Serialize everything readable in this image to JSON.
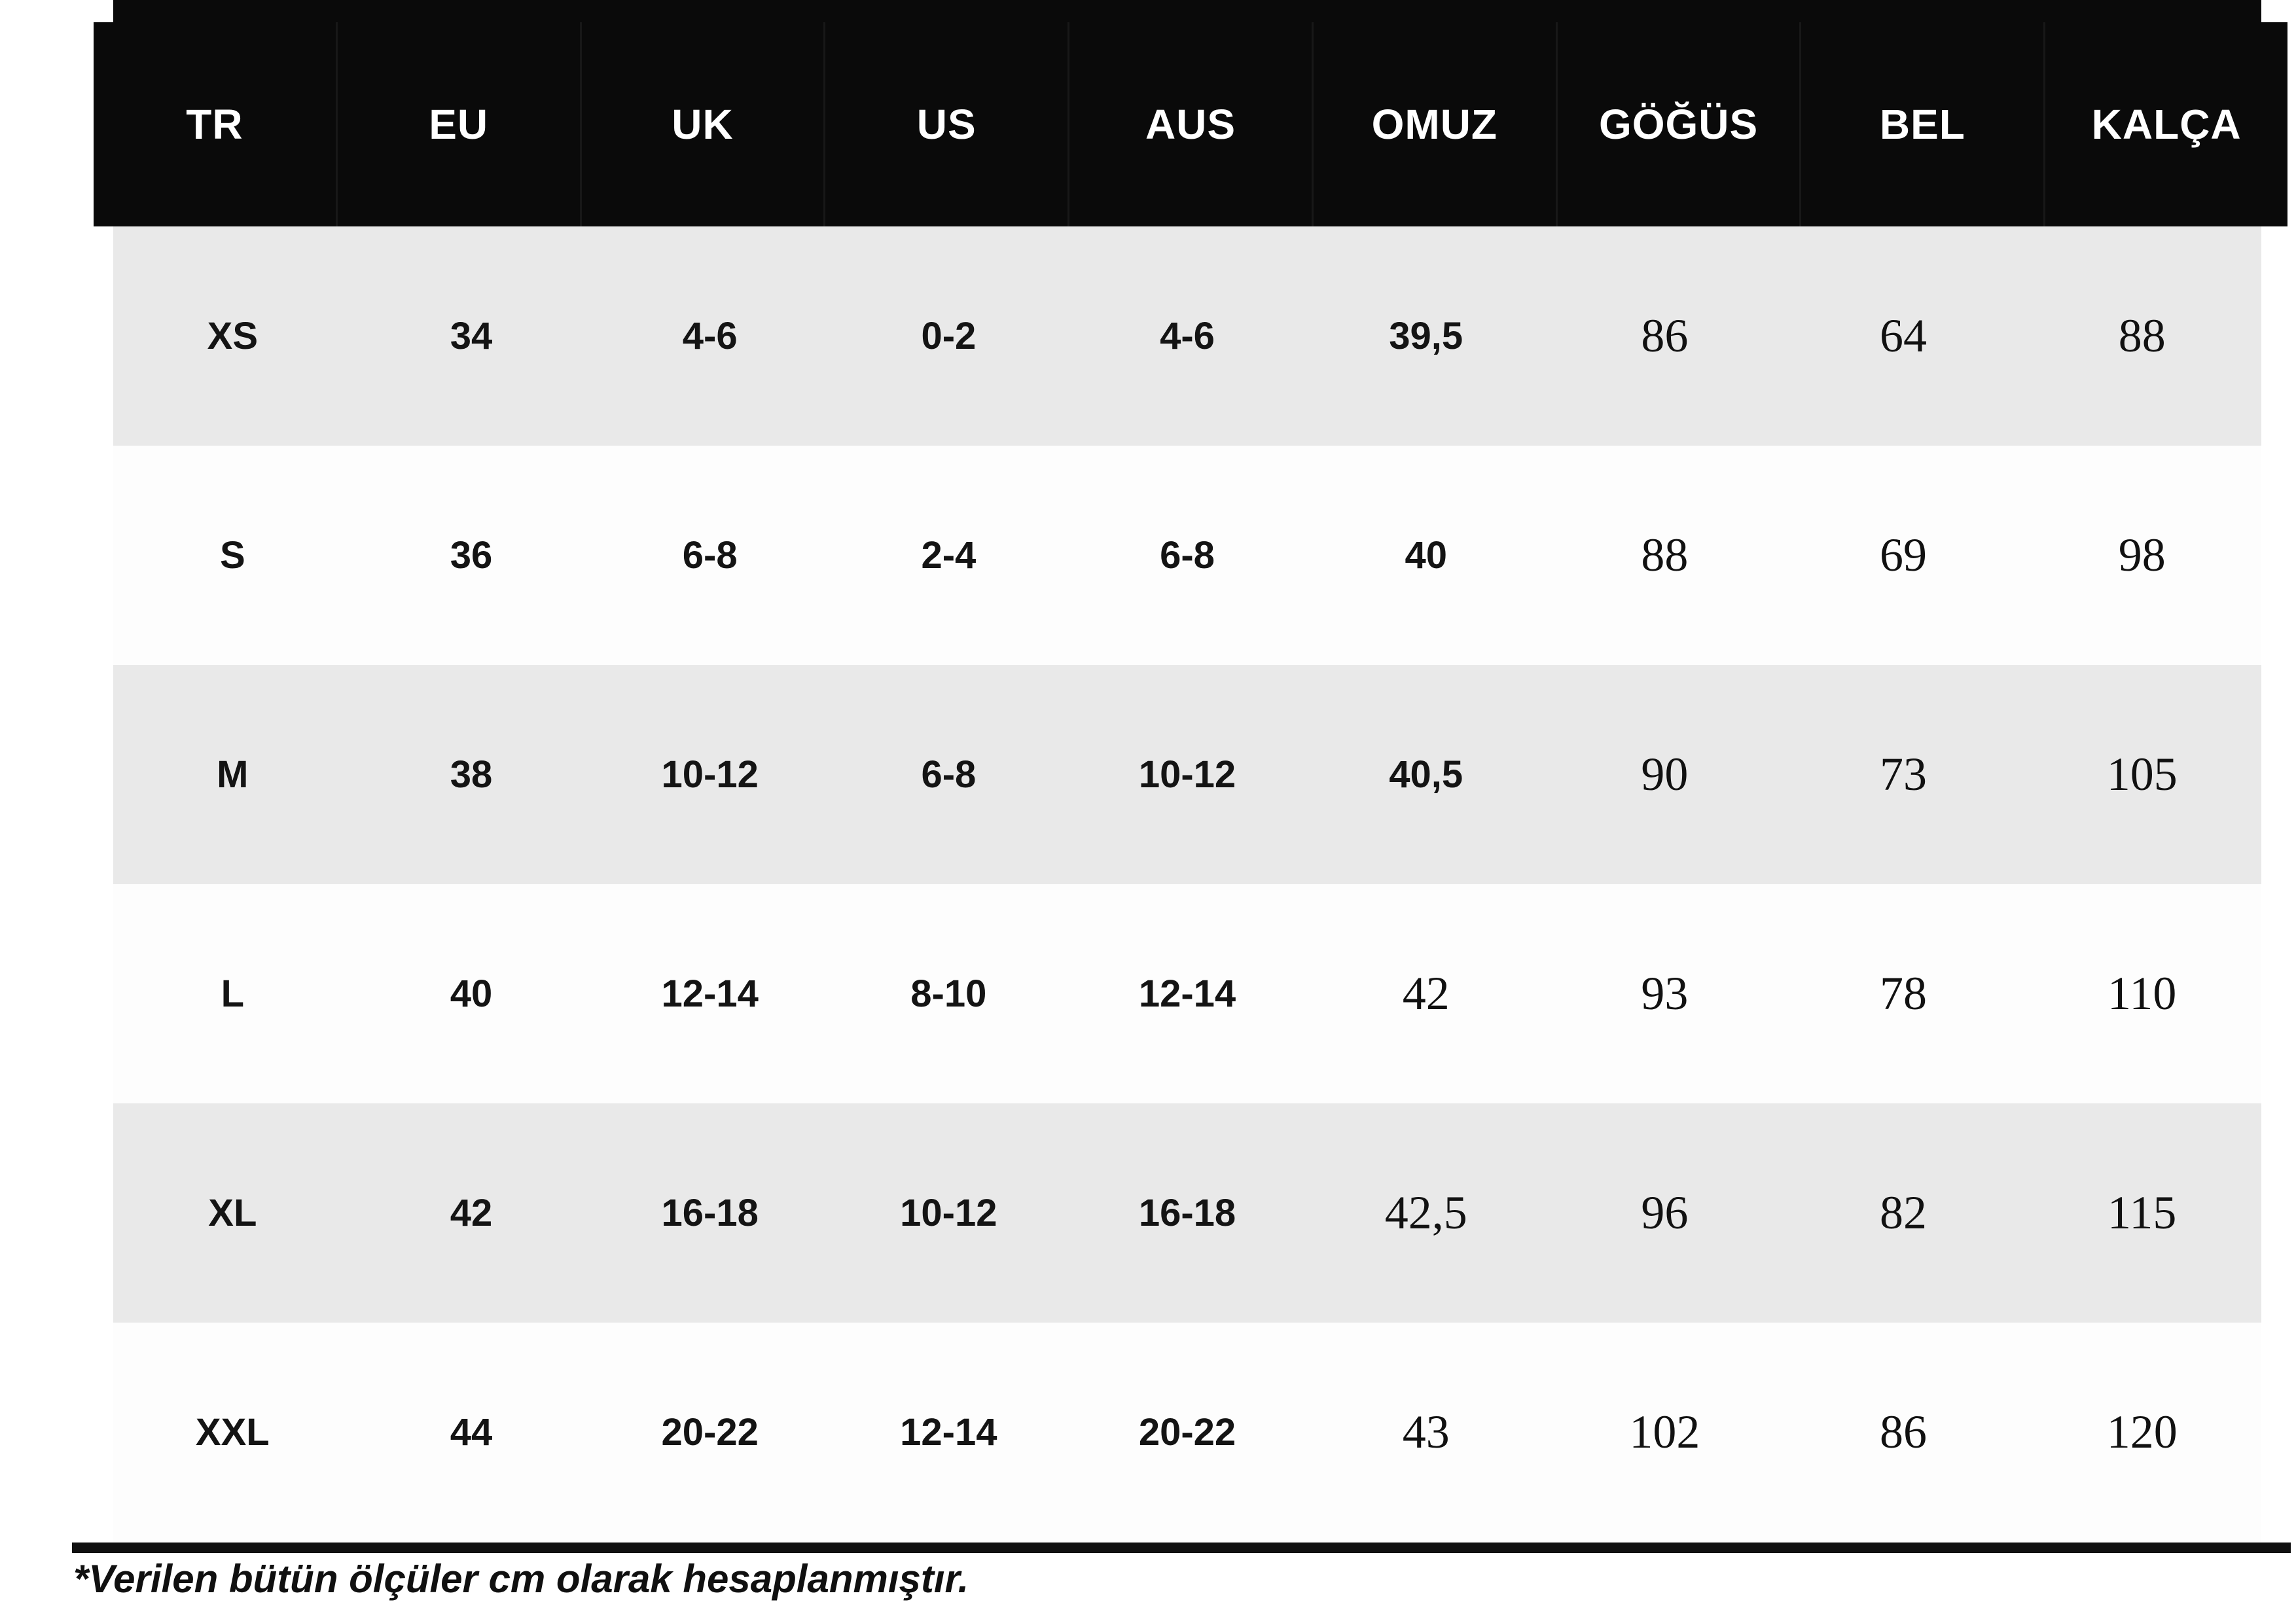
{
  "table": {
    "columns": [
      "TR",
      "EU",
      "UK",
      "US",
      "AUS",
      "OMUZ",
      "GÖĞÜS",
      "BEL",
      "KALÇA"
    ],
    "rows": [
      [
        "XS",
        "34",
        "4-6",
        "0-2",
        "4-6",
        "39,5",
        "86",
        "64",
        "88"
      ],
      [
        "S",
        "36",
        "6-8",
        "2-4",
        "6-8",
        "40",
        "88",
        "69",
        "98"
      ],
      [
        "M",
        "38",
        "10-12",
        "6-8",
        "10-12",
        "40,5",
        "90",
        "73",
        "105"
      ],
      [
        "L",
        "40",
        "12-14",
        "8-10",
        "12-14",
        "42",
        "93",
        "78",
        "110"
      ],
      [
        "XL",
        "42",
        "16-18",
        "10-12",
        "16-18",
        "42,5",
        "96",
        "82",
        "115"
      ],
      [
        "XXL",
        "44",
        "20-22",
        "12-14",
        "20-22",
        "43",
        "102",
        "86",
        "120"
      ]
    ]
  },
  "footnote": "*Verilen bütün ölçüler cm olarak hesaplanmıştır.",
  "colors": {
    "header_bg": "#0a0a0a",
    "header_text": "#ffffff",
    "row_alt_bg": "#e9e9e9",
    "row_bg": "#fdfdfd",
    "body_text": "#121212"
  }
}
